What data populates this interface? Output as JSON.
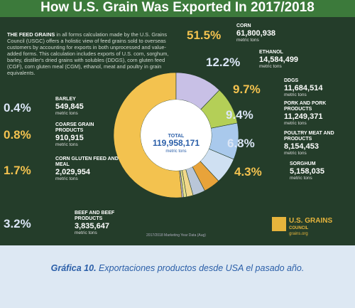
{
  "chart_data": {
    "type": "donut",
    "title": "How U.S. Grain Was Exported In 2017/2018",
    "intro_lead": "THE FEED GRAINS",
    "intro": "in all forms calculation made by the U.S. Grains Council (USGC) offers a holistic view of feed grains sold to overseas customers by accounting for exports in both unprocessed and value-added forms. This calculation includes exports of U.S. corn, sorghum, barley, distiller's dried grains with solubles (DDGS), corn gluten feed (CGF), corn gluten meal (CGM), ethanol, meat and poultry in grain equivalents.",
    "categories": [
      "CORN",
      "ETHANOL",
      "DDGS",
      "PORK AND PORK PRODUCTS",
      "POULTRY MEAT AND PRODUCTS",
      "SORGHUM",
      "BEEF AND BEEF PRODUCTS",
      "CORN GLUTEN FEED AND MEAL",
      "COARSE GRAIN PRODUCTS",
      "BARLEY"
    ],
    "values": [
      51.5,
      12.2,
      9.7,
      9.4,
      6.8,
      4.3,
      3.2,
      1.7,
      0.8,
      0.4
    ],
    "value_labels": [
      "51.5%",
      "12.2%",
      "9.7%",
      "9.4%",
      "6.8%",
      "4.3%",
      "3.2%",
      "1.7%",
      "0.8%",
      "0.4%"
    ],
    "tonnes": [
      61800938,
      14584499,
      11684514,
      11249371,
      8154453,
      5158035,
      3835647,
      2029954,
      910915,
      549845
    ],
    "tonne_labels": [
      "61,800,938",
      "14,584,499",
      "11,684,514",
      "11,249,371",
      "8,154,453",
      "5,158,035",
      "3,835,647",
      "2,029,954",
      "910,915",
      "549,845"
    ],
    "unit": "metric tons",
    "colors": [
      "#f3c24f",
      "#c8c0e6",
      "#b4cf57",
      "#a9c9ec",
      "#cfe0f2",
      "#e8a33a",
      "#b9c6d8",
      "#f1d88a",
      "#e5e08a",
      "#d7c3e3"
    ],
    "total_label": "TOTAL",
    "total": {
      "value": 119958171,
      "label": "119,958,171"
    },
    "footnote": "2017/2018 Marketing Year Data (Aug)",
    "logo": [
      "U.S. GRAINS",
      "COUNCIL",
      "grains.org"
    ],
    "caption_lead": "Gráfica 10.",
    "caption": "Exportaciones productos desde USA el pasado año."
  }
}
